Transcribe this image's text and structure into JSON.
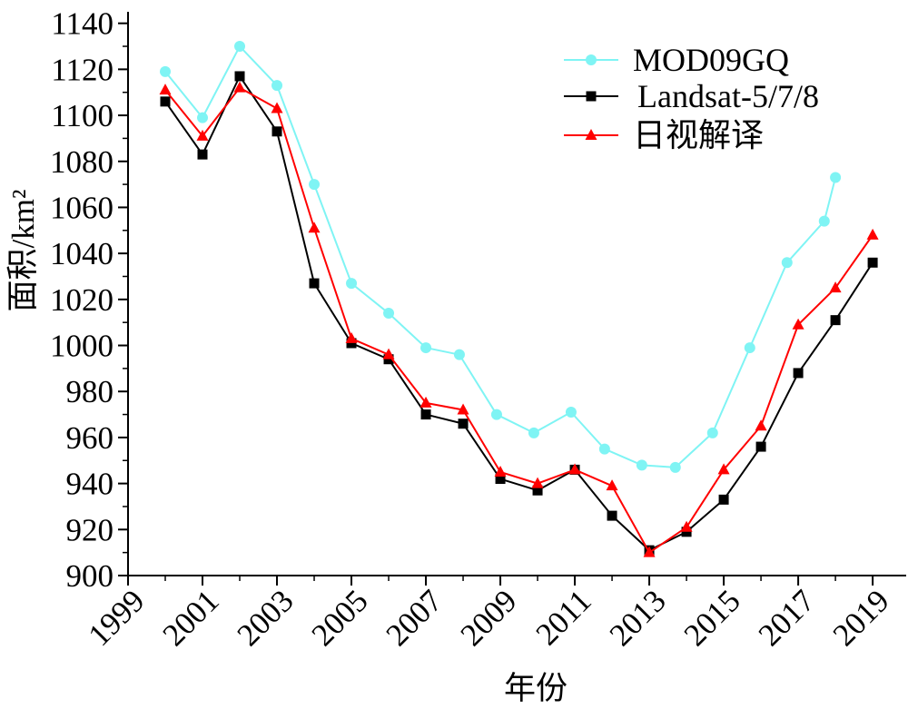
{
  "chart_data": {
    "type": "line",
    "xlabel": "年份",
    "ylabel": "面积/km²",
    "xlim": [
      1999,
      2019.9
    ],
    "ylim": [
      900,
      1145
    ],
    "x_ticks": [
      1999,
      2001,
      2003,
      2005,
      2007,
      2009,
      2011,
      2013,
      2015,
      2017,
      2019
    ],
    "y_ticks": [
      900,
      920,
      940,
      960,
      980,
      1000,
      1020,
      1040,
      1060,
      1080,
      1100,
      1120,
      1140
    ],
    "grid": false,
    "legend": "top-right",
    "series": [
      {
        "name": "MOD09GQ",
        "color": "#7ff4f4",
        "marker": "circle",
        "x": [
          2000,
          2001,
          2002,
          2003,
          2004,
          2005,
          2006,
          2007,
          2007.9,
          2008.9,
          2009.9,
          2010.9,
          2011.8,
          2012.8,
          2013.7,
          2014.7,
          2015.7,
          2016.7,
          2017.7,
          2018
        ],
        "y": [
          1119,
          1099,
          1130,
          1113,
          1070,
          1027,
          1014,
          999,
          996,
          970,
          962,
          971,
          955,
          948,
          947,
          962,
          999,
          1036,
          1054,
          1073
        ]
      },
      {
        "name": "Landsat-5/7/8",
        "color": "#000000",
        "marker": "square",
        "x": [
          2000,
          2001,
          2002,
          2003,
          2004,
          2005,
          2006,
          2007,
          2008,
          2009,
          2010,
          2011,
          2012,
          2013,
          2014,
          2015,
          2016,
          2017,
          2018,
          2019
        ],
        "y": [
          1106,
          1083,
          1117,
          1093,
          1027,
          1001,
          994,
          970,
          966,
          942,
          937,
          946,
          926,
          911,
          919,
          933,
          956,
          988,
          1011,
          1036
        ]
      },
      {
        "name": "日视解译",
        "color": "#ff0000",
        "marker": "triangle",
        "x": [
          2000,
          2001,
          2002,
          2003,
          2004,
          2005,
          2006,
          2007,
          2008,
          2009,
          2010,
          2011,
          2012,
          2013,
          2014,
          2015,
          2016,
          2017,
          2018,
          2019
        ],
        "y": [
          1111,
          1091,
          1112,
          1103,
          1051,
          1003,
          996,
          975,
          972,
          945,
          940,
          946,
          939,
          910,
          921,
          946,
          965,
          1009,
          1025,
          1048
        ]
      }
    ]
  }
}
